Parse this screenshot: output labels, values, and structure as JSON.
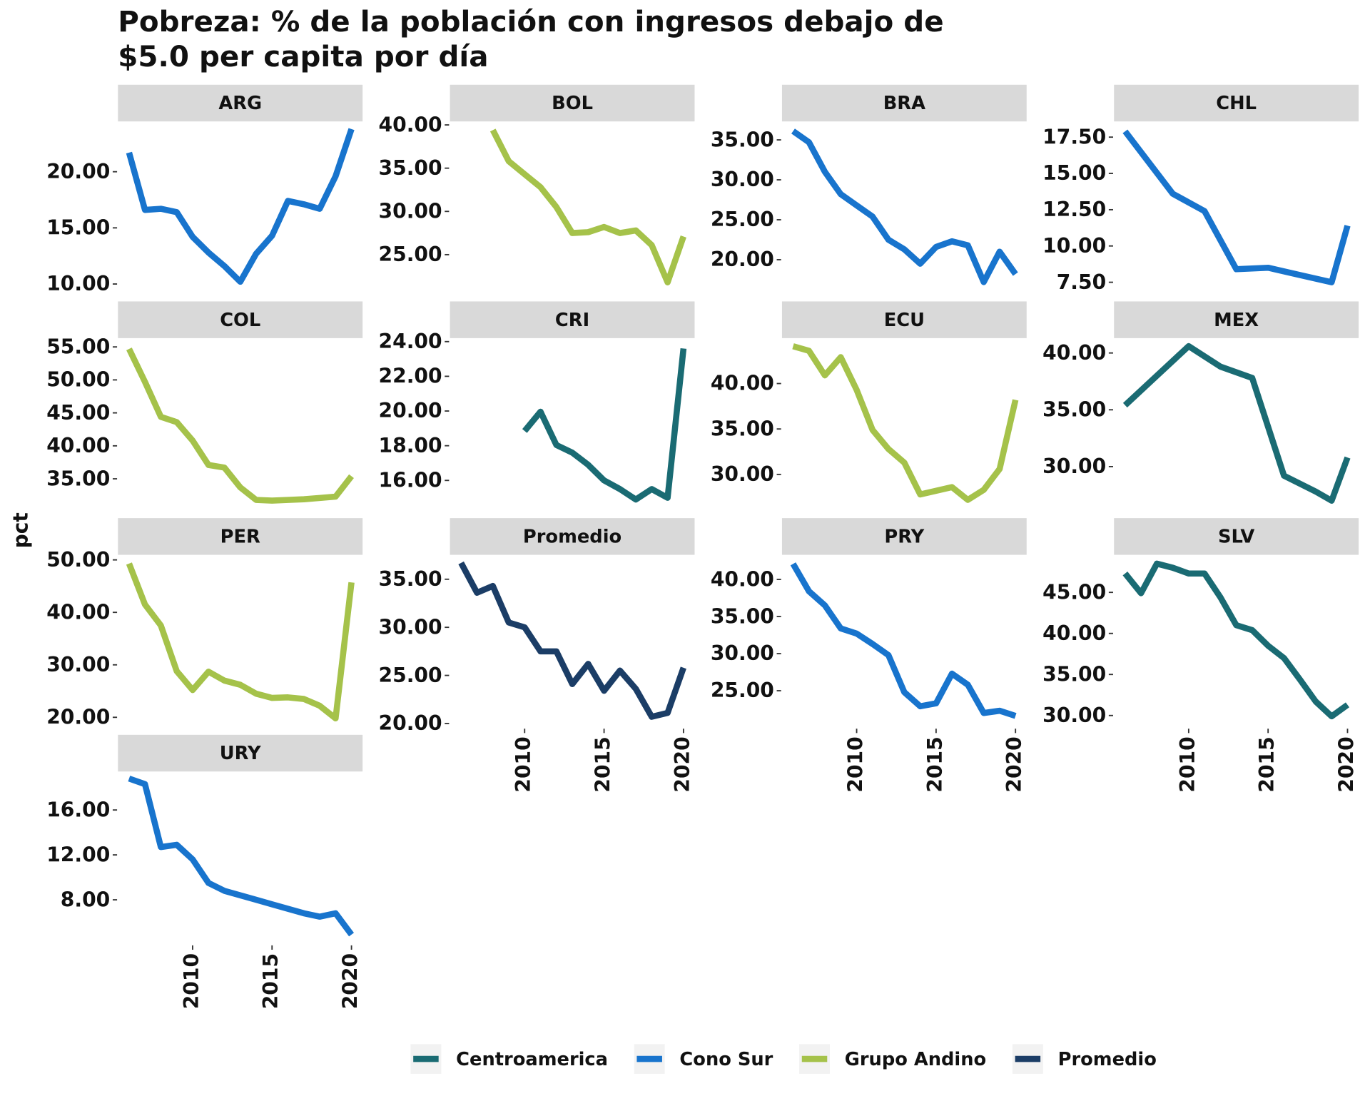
{
  "chart_data": {
    "type": "line",
    "title": [
      "Pobreza: % de la población con ingresos debajo de",
      "$5.0 per capita por día"
    ],
    "y_label": "pct",
    "xlim": [
      2005.3,
      2020.7
    ],
    "xticks": [
      2010,
      2015,
      2020
    ],
    "legend": [
      {
        "name": "Centroamerica",
        "color": "#1a6b73"
      },
      {
        "name": "Cono Sur",
        "color": "#1874cd"
      },
      {
        "name": "Grupo Andino",
        "color": "#a5c24a"
      },
      {
        "name": "Promedio",
        "color": "#1b3d66"
      }
    ],
    "facets": [
      {
        "title": "ARG",
        "color": "#1874cd",
        "ylim": [
          9.07,
          24.4
        ],
        "yticks": [
          {
            "value": 10,
            "label": "10.00"
          },
          {
            "value": 15,
            "label": "15.00"
          },
          {
            "value": 20,
            "label": "20.00"
          }
        ],
        "x": [
          2006,
          2007,
          2008,
          2009,
          2010,
          2011,
          2012,
          2013,
          2014,
          2015,
          2016,
          2017,
          2018,
          2019,
          2020
        ],
        "values": [
          21.7,
          16.6,
          16.7,
          16.4,
          14.2,
          12.8,
          11.6,
          10.2,
          12.7,
          14.3,
          17.4,
          17.1,
          16.7,
          19.6,
          23.8
        ]
      },
      {
        "title": "BOL",
        "color": "#a5c24a",
        "ylim": [
          20.4,
          40.3
        ],
        "yticks": [
          {
            "value": 25,
            "label": "25.00"
          },
          {
            "value": 30,
            "label": "30.00"
          },
          {
            "value": 35,
            "label": "35.00"
          },
          {
            "value": 40,
            "label": "40.00"
          }
        ],
        "x": [
          2008,
          2009,
          2010,
          2011,
          2012,
          2013,
          2014,
          2015,
          2016,
          2017,
          2018,
          2019,
          2020
        ],
        "values": [
          39.4,
          35.8,
          34.3,
          32.8,
          30.5,
          27.5,
          27.6,
          28.2,
          27.5,
          27.8,
          26.1,
          21.8,
          27.1
        ]
      },
      {
        "title": "BRA",
        "color": "#1874cd",
        "ylim": [
          15.65,
          37.2
        ],
        "yticks": [
          {
            "value": 20,
            "label": "20.00"
          },
          {
            "value": 25,
            "label": "25.00"
          },
          {
            "value": 30,
            "label": "30.00"
          },
          {
            "value": 35,
            "label": "35.00"
          }
        ],
        "x": [
          2006,
          2007,
          2008,
          2009,
          2010,
          2011,
          2012,
          2013,
          2014,
          2015,
          2016,
          2017,
          2018,
          2019,
          2020
        ],
        "values": [
          36.1,
          34.7,
          31.0,
          28.2,
          26.8,
          25.4,
          22.5,
          21.3,
          19.5,
          21.6,
          22.3,
          21.8,
          17.2,
          21.0,
          18.2
        ]
      },
      {
        "title": "CHL",
        "color": "#1874cd",
        "ylim": [
          6.66,
          18.52
        ],
        "yticks": [
          {
            "value": 7.5,
            "label": "7.50"
          },
          {
            "value": 10,
            "label": "10.00"
          },
          {
            "value": 12.5,
            "label": "12.50"
          },
          {
            "value": 15,
            "label": "15.00"
          },
          {
            "value": 17.5,
            "label": "17.50"
          }
        ],
        "x": [
          2006,
          2009,
          2011,
          2013,
          2015,
          2017,
          2019,
          2020
        ],
        "values": [
          17.9,
          13.6,
          12.4,
          8.4,
          8.5,
          8.0,
          7.5,
          11.4
        ]
      },
      {
        "title": "COL",
        "color": "#a5c24a",
        "ylim": [
          30.1,
          56.2
        ],
        "yticks": [
          {
            "value": 35,
            "label": "35.00"
          },
          {
            "value": 40,
            "label": "40.00"
          },
          {
            "value": 45,
            "label": "45.00"
          },
          {
            "value": 50,
            "label": "50.00"
          },
          {
            "value": 55,
            "label": "55.00"
          }
        ],
        "x": [
          2006,
          2007,
          2008,
          2009,
          2010,
          2011,
          2012,
          2013,
          2014,
          2015,
          2016,
          2017,
          2018,
          2019,
          2020
        ],
        "values": [
          54.7,
          49.7,
          44.4,
          43.6,
          40.8,
          37.1,
          36.7,
          33.7,
          31.8,
          31.7,
          31.8,
          31.9,
          32.1,
          32.3,
          35.4
        ]
      },
      {
        "title": "CRI",
        "color": "#1a6b73",
        "ylim": [
          14.23,
          24.15
        ],
        "yticks": [
          {
            "value": 16,
            "label": "16.00"
          },
          {
            "value": 18,
            "label": "18.00"
          },
          {
            "value": 20,
            "label": "20.00"
          },
          {
            "value": 22,
            "label": "22.00"
          },
          {
            "value": 24,
            "label": "24.00"
          }
        ],
        "x": [
          2010,
          2011,
          2012,
          2013,
          2014,
          2015,
          2016,
          2017,
          2018,
          2019,
          2020
        ],
        "values": [
          18.85,
          19.96,
          18.04,
          17.6,
          16.9,
          16.0,
          15.5,
          14.9,
          15.5,
          15.0,
          23.6
        ]
      },
      {
        "title": "ECU",
        "color": "#a5c24a",
        "ylim": [
          25.96,
          44.9
        ],
        "yticks": [
          {
            "value": 30,
            "label": "30.00"
          },
          {
            "value": 35,
            "label": "35.00"
          },
          {
            "value": 40,
            "label": "40.00"
          }
        ],
        "x": [
          2006,
          2007,
          2008,
          2009,
          2010,
          2011,
          2012,
          2013,
          2014,
          2015,
          2016,
          2017,
          2018,
          2019,
          2020
        ],
        "values": [
          44.1,
          43.6,
          40.9,
          42.9,
          39.3,
          34.9,
          32.8,
          31.3,
          27.8,
          28.2,
          28.6,
          27.2,
          28.3,
          30.6,
          38.2
        ]
      },
      {
        "title": "MEX",
        "color": "#1a6b73",
        "ylim": [
          26.08,
          41.23
        ],
        "yticks": [
          {
            "value": 30,
            "label": "30.00"
          },
          {
            "value": 35,
            "label": "35.00"
          },
          {
            "value": 40,
            "label": "40.00"
          }
        ],
        "x": [
          2006,
          2008,
          2010,
          2012,
          2014,
          2016,
          2018,
          2019,
          2020
        ],
        "values": [
          35.4,
          38.0,
          40.6,
          38.8,
          37.8,
          29.2,
          27.8,
          27.0,
          30.8
        ]
      },
      {
        "title": "PER",
        "color": "#a5c24a",
        "ylim": [
          18.0,
          50.8
        ],
        "yticks": [
          {
            "value": 20,
            "label": "20.00"
          },
          {
            "value": 30,
            "label": "30.00"
          },
          {
            "value": 40,
            "label": "40.00"
          },
          {
            "value": 50,
            "label": "50.00"
          }
        ],
        "x": [
          2006,
          2007,
          2008,
          2009,
          2010,
          2011,
          2012,
          2013,
          2014,
          2015,
          2016,
          2017,
          2018,
          2019,
          2020
        ],
        "values": [
          49.3,
          41.5,
          37.5,
          28.8,
          25.2,
          28.7,
          27.0,
          26.2,
          24.5,
          23.7,
          23.8,
          23.5,
          22.2,
          19.8,
          45.7
        ]
      },
      {
        "title": "Promedio",
        "color": "#1b3d66",
        "ylim": [
          19.55,
          37.45
        ],
        "yticks": [
          {
            "value": 20,
            "label": "20.00"
          },
          {
            "value": 25,
            "label": "25.00"
          },
          {
            "value": 30,
            "label": "30.00"
          },
          {
            "value": 35,
            "label": "35.00"
          }
        ],
        "x": [
          2006,
          2007,
          2008,
          2009,
          2010,
          2011,
          2012,
          2013,
          2014,
          2015,
          2016,
          2017,
          2018,
          2019,
          2020
        ],
        "values": [
          36.7,
          33.6,
          34.3,
          30.5,
          30.0,
          27.5,
          27.5,
          24.1,
          26.2,
          23.4,
          25.5,
          23.6,
          20.7,
          21.1,
          25.8
        ]
      },
      {
        "title": "PRY",
        "color": "#1874cd",
        "ylim": [
          20.0,
          43.2
        ],
        "yticks": [
          {
            "value": 25,
            "label": "25.00"
          },
          {
            "value": 30,
            "label": "30.00"
          },
          {
            "value": 35,
            "label": "35.00"
          },
          {
            "value": 40,
            "label": "40.00"
          }
        ],
        "x": [
          2006,
          2007,
          2008,
          2009,
          2010,
          2011,
          2012,
          2013,
          2014,
          2015,
          2016,
          2017,
          2018,
          2019,
          2020
        ],
        "values": [
          42.1,
          38.4,
          36.5,
          33.4,
          32.7,
          31.3,
          29.8,
          24.8,
          22.9,
          23.3,
          27.3,
          25.8,
          22.0,
          22.3,
          21.6
        ]
      },
      {
        "title": "SLV",
        "color": "#1a6b73",
        "ylim": [
          28.5,
          49.47
        ],
        "yticks": [
          {
            "value": 30,
            "label": "30.00"
          },
          {
            "value": 35,
            "label": "35.00"
          },
          {
            "value": 40,
            "label": "40.00"
          },
          {
            "value": 45,
            "label": "45.00"
          }
        ],
        "x": [
          2006,
          2007,
          2008,
          2009,
          2010,
          2011,
          2012,
          2013,
          2014,
          2015,
          2016,
          2017,
          2018,
          2019,
          2020
        ],
        "values": [
          47.3,
          44.9,
          48.5,
          48.0,
          47.3,
          47.3,
          44.4,
          41.0,
          40.4,
          38.5,
          37.0,
          34.4,
          31.7,
          29.9,
          31.3
        ]
      },
      {
        "title": "URY",
        "color": "#1874cd",
        "ylim": [
          4.02,
          19.35
        ],
        "yticks": [
          {
            "value": 8,
            "label": "8.00"
          },
          {
            "value": 12,
            "label": "12.00"
          },
          {
            "value": 16,
            "label": "16.00"
          }
        ],
        "x": [
          2006,
          2007,
          2008,
          2009,
          2010,
          2011,
          2012,
          2013,
          2014,
          2015,
          2016,
          2017,
          2018,
          2019,
          2020
        ],
        "values": [
          18.8,
          18.3,
          12.7,
          12.9,
          11.6,
          9.5,
          8.8,
          8.4,
          8.0,
          7.6,
          7.2,
          6.8,
          6.5,
          6.8,
          4.9
        ]
      }
    ]
  }
}
